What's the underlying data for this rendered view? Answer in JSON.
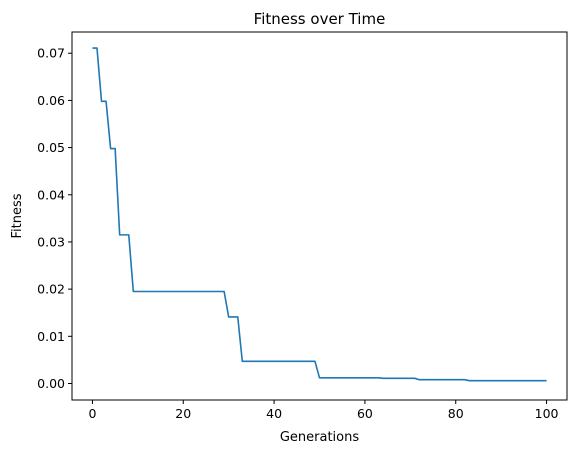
{
  "chart_data": {
    "type": "line",
    "title": "Fitness over Time",
    "xlabel": "Generations",
    "ylabel": "Fitness",
    "xlim": [
      -4.5,
      104.5
    ],
    "ylim": [
      -0.0035,
      0.0745
    ],
    "x_ticks": [
      0,
      20,
      40,
      60,
      80,
      100
    ],
    "x_tick_labels": [
      "0",
      "20",
      "40",
      "60",
      "80",
      "100"
    ],
    "y_ticks": [
      0.0,
      0.01,
      0.02,
      0.03,
      0.04,
      0.05,
      0.06,
      0.07
    ],
    "y_tick_labels": [
      "0.00",
      "0.01",
      "0.02",
      "0.03",
      "0.04",
      "0.05",
      "0.06",
      "0.07"
    ],
    "grid": false,
    "legend": "none",
    "series": [
      {
        "color": "#1f77b4",
        "steps": [
          {
            "x": 0,
            "y": 0.0711
          },
          {
            "x": 1,
            "y": 0.0711
          },
          {
            "x": 2,
            "y": 0.0598
          },
          {
            "x": 3,
            "y": 0.0598
          },
          {
            "x": 4,
            "y": 0.0498
          },
          {
            "x": 5,
            "y": 0.0498
          },
          {
            "x": 6,
            "y": 0.0315
          },
          {
            "x": 8,
            "y": 0.0315
          },
          {
            "x": 9,
            "y": 0.0195
          },
          {
            "x": 29,
            "y": 0.0195
          },
          {
            "x": 30,
            "y": 0.0141
          },
          {
            "x": 32,
            "y": 0.0141
          },
          {
            "x": 33,
            "y": 0.0047
          },
          {
            "x": 49,
            "y": 0.0047
          },
          {
            "x": 50,
            "y": 0.0012
          },
          {
            "x": 63,
            "y": 0.0012
          },
          {
            "x": 64,
            "y": 0.0011
          },
          {
            "x": 71,
            "y": 0.0011
          },
          {
            "x": 72,
            "y": 0.0008
          },
          {
            "x": 82,
            "y": 0.0008
          },
          {
            "x": 83,
            "y": 0.0006
          },
          {
            "x": 100,
            "y": 0.0006
          }
        ]
      }
    ]
  }
}
